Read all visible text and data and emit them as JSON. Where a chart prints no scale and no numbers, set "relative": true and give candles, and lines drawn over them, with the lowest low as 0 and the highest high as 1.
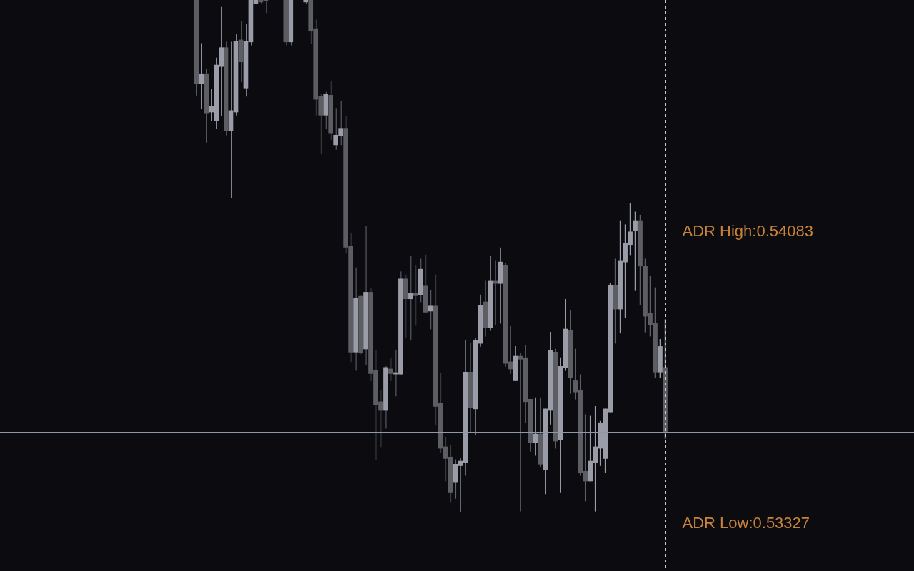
{
  "chart_data": {
    "type": "candlestick",
    "relative": true,
    "categories": [
      null,
      null,
      null,
      null,
      null,
      null,
      null,
      null,
      null,
      null,
      null,
      null,
      null,
      null,
      null,
      null,
      null,
      null,
      null,
      null,
      null,
      null,
      null,
      null,
      null,
      null,
      null,
      null,
      null,
      null,
      null,
      null,
      null,
      null,
      null,
      null,
      null,
      null,
      null,
      null,
      null,
      null,
      null,
      null,
      null,
      null,
      null,
      null,
      null,
      null,
      null,
      null,
      null,
      null,
      null,
      null,
      null,
      null,
      null,
      null,
      null,
      null,
      null,
      null,
      null,
      null,
      null,
      null,
      null,
      null,
      null,
      null,
      null,
      null,
      null,
      null,
      null,
      null,
      null,
      null,
      null,
      null,
      null,
      null,
      null,
      null,
      null,
      null,
      null,
      null,
      null,
      null,
      null,
      null,
      null
    ],
    "ohlc": [
      [
        1,
        1,
        0.814,
        0.837
      ],
      [
        0.837,
        0.915,
        0.787,
        0.856
      ],
      [
        0.856,
        0.865,
        0.722,
        0.778
      ],
      [
        0.781,
        0.826,
        0.764,
        0.792
      ],
      [
        0.764,
        0.887,
        0.748,
        0.873
      ],
      [
        0.87,
        0.986,
        0.773,
        0.907
      ],
      [
        0.907,
        0.918,
        0.736,
        0.745
      ],
      [
        0.745,
        0.918,
        0.614,
        0.784
      ],
      [
        0.781,
        0.933,
        0.775,
        0.92
      ],
      [
        0.922,
        0.958,
        0.84,
        0.879
      ],
      [
        0.828,
        0.953,
        0.812,
        0.92
      ],
      [
        0.918,
        1,
        0.912,
        1
      ],
      [
        0.993,
        1,
        0.992,
        1
      ],
      [
        1,
        1,
        0.994,
        0.996
      ],
      [
        1,
        1,
        0.975,
        1
      ],
      null,
      null,
      null,
      [
        1,
        1,
        0.912,
        0.918
      ],
      [
        0.918,
        1,
        0.912,
        1
      ],
      null,
      null,
      [
        0.996,
        1,
        0.992,
        1
      ],
      [
        1,
        1,
        0.915,
        0.939
      ],
      [
        0.944,
        0.961,
        0.775,
        0.806
      ],
      [
        0.812,
        0.817,
        0.699,
        0.775
      ],
      [
        0.775,
        0.82,
        0.748,
        0.816
      ],
      [
        0.814,
        0.842,
        0.727,
        0.739
      ],
      [
        0.717,
        0.787,
        0.708,
        0.736
      ],
      [
        0.734,
        0.803,
        0.717,
        0.748
      ],
      [
        0.748,
        0.773,
        0.505,
        0.517
      ],
      [
        0.519,
        0.544,
        0.293,
        0.312
      ],
      [
        0.312,
        0.477,
        0.276,
        0.418
      ],
      [
        0.421,
        0.422,
        0.308,
        0.311
      ],
      [
        0.318,
        0.558,
        0.287,
        0.429
      ],
      [
        0.429,
        0.436,
        0.256,
        0.27
      ],
      [
        0.276,
        0.315,
        0.102,
        0.209
      ],
      [
        0.215,
        0.237,
        0.127,
        0.198
      ],
      [
        0.198,
        0.284,
        0.163,
        0.282
      ],
      [
        0.279,
        0.301,
        0.256,
        0.27
      ],
      [
        0.269,
        0.315,
        0.226,
        0.272
      ],
      [
        0.269,
        0.469,
        0.268,
        0.455
      ],
      [
        0.455,
        0.463,
        0.34,
        0.416
      ],
      [
        0.416,
        0.499,
        0.335,
        0.427
      ],
      [
        0.427,
        0.482,
        0.364,
        0.422
      ],
      [
        0.424,
        0.494,
        0.41,
        0.474
      ],
      [
        0.441,
        0.502,
        0.388,
        0.39
      ],
      [
        0.392,
        0.432,
        0.357,
        0.402
      ],
      [
        0.402,
        0.463,
        0.169,
        0.206
      ],
      [
        0.212,
        0.271,
        0.116,
        0.124
      ],
      [
        0.127,
        0.146,
        0.06,
        0.104
      ],
      [
        0.107,
        0.13,
        0.018,
        0.037
      ],
      [
        0.057,
        0.102,
        0.026,
        0.093
      ],
      [
        0.09,
        0.104,
        0,
        0.099
      ],
      [
        0.096,
        0.335,
        0.071,
        0.273
      ],
      [
        0.273,
        0.329,
        0.155,
        0.203
      ],
      [
        0.201,
        0.34,
        0.15,
        0.335
      ],
      [
        0.329,
        0.424,
        0.323,
        0.404
      ],
      [
        0.41,
        0.452,
        0.343,
        0.36
      ],
      [
        0.36,
        0.499,
        0.354,
        0.452
      ],
      [
        0.452,
        0.491,
        0.365,
        0.446
      ],
      [
        0.446,
        0.516,
        0.368,
        0.488
      ],
      [
        0.482,
        0.485,
        0.284,
        0.29
      ],
      [
        0.293,
        0.362,
        0.27,
        0.279
      ],
      [
        0.256,
        0.323,
        0.256,
        0.304
      ],
      [
        0.304,
        0.309,
        0.001,
        0.298
      ],
      [
        0.301,
        0.326,
        0.174,
        0.215
      ],
      [
        0.22,
        0.22,
        0.118,
        0.135
      ],
      [
        0.135,
        0.223,
        0.11,
        0.152
      ],
      [
        0.152,
        0.223,
        0.088,
        0.093
      ],
      [
        0.082,
        0.201,
        0.035,
        0.201
      ],
      [
        0.198,
        0.351,
        0.171,
        0.315
      ],
      [
        0.312,
        0.318,
        0.124,
        0.138
      ],
      [
        0.141,
        0.301,
        0.037,
        0.284
      ],
      [
        0.282,
        0.415,
        0.276,
        0.357
      ],
      [
        0.354,
        0.393,
        0.231,
        0.262
      ],
      [
        0.256,
        0.318,
        0.22,
        0.234
      ],
      [
        0.237,
        0.268,
        0.071,
        0.077
      ],
      [
        0.079,
        0.19,
        0.021,
        0.06
      ],
      [
        0.06,
        0.187,
        0.06,
        0.099
      ],
      [
        0.096,
        0.206,
        0.001,
        0.127
      ],
      [
        0.124,
        0.177,
        0.09,
        0.174
      ],
      [
        0.104,
        0.201,
        0.077,
        0.201
      ],
      [
        0.195,
        0.446,
        0.195,
        0.443
      ],
      [
        0.443,
        0.494,
        0.329,
        0.396
      ],
      [
        0.396,
        0.569,
        0.349,
        0.491
      ],
      [
        0.488,
        0.561,
        0.379,
        0.524
      ],
      [
        0.522,
        0.602,
        0.502,
        0.547
      ],
      [
        0.549,
        0.586,
        0.432,
        0.569
      ],
      [
        0.569,
        0.58,
        0.404,
        0.48
      ],
      [
        0.48,
        0.494,
        0.351,
        0.382
      ],
      [
        0.388,
        0.46,
        0.343,
        0.365
      ],
      [
        0.368,
        0.438,
        0.262,
        0.273
      ],
      [
        0.273,
        0.337,
        0.262,
        0.323
      ],
      [
        0.282,
        0.376,
        0.143,
        0.156
      ]
    ],
    "colors": [
      "#5d5e63",
      "#9a9ca8",
      "#5d5e63",
      "#9a9ca8",
      "#9a9ca8",
      "#9a9ca8",
      "#5d5e63",
      "#9a9ca8",
      "#9a9ca8",
      "#5d5e63",
      "#9a9ca8",
      "#9a9ca8",
      "#9a9ca8",
      "#5d5e63",
      "#5d5e63",
      null,
      null,
      null,
      "#5d5e63",
      "#9a9ca8",
      null,
      null,
      "#9a9ca8",
      "#5d5e63",
      "#5d5e63",
      "#5d5e63",
      "#9a9ca8",
      "#5d5e63",
      "#9a9ca8",
      "#9a9ca8",
      "#5d5e63",
      "#5d5e63",
      "#9a9ca8",
      "#5d5e63",
      "#9a9ca8",
      "#5d5e63",
      "#5d5e63",
      "#5d5e63",
      "#9a9ca8",
      "#5d5e63",
      "#9a9ca8",
      "#9a9ca8",
      "#5d5e63",
      "#9a9ca8",
      "#5d5e63",
      "#9a9ca8",
      "#5d5e63",
      "#9a9ca8",
      "#5d5e63",
      "#5d5e63",
      "#5d5e63",
      "#5d5e63",
      "#9a9ca8",
      "#9a9ca8",
      "#9a9ca8",
      "#5d5e63",
      "#9a9ca8",
      "#9a9ca8",
      "#5d5e63",
      "#9a9ca8",
      "#5d5e63",
      "#9a9ca8",
      "#5d5e63",
      "#5d5e63",
      "#9a9ca8",
      "#5d5e63",
      "#5d5e63",
      "#5d5e63",
      "#9a9ca8",
      "#5d5e63",
      "#9a9ca8",
      "#9a9ca8",
      "#5d5e63",
      "#9a9ca8",
      "#9a9ca8",
      "#5d5e63",
      "#5d5e63",
      "#5d5e63",
      "#5d5e63",
      "#9a9ca8",
      "#9a9ca8",
      "#9a9ca8",
      "#9a9ca8",
      "#9a9ca8",
      "#5d5e63",
      "#9a9ca8",
      "#9a9ca8",
      "#9a9ca8",
      "#9a9ca8",
      "#5d5e63",
      "#5d5e63",
      "#5d5e63",
      "#5d5e63",
      "#9a9ca8",
      "#5d5e63"
    ],
    "ref_lines": [
      {
        "axis": "y",
        "value": 0.156,
        "color": "#8e98a8",
        "line_style": "solid"
      }
    ],
    "annotations": [
      "ADR High:0.54083",
      "ADR Low:0.53327"
    ]
  }
}
